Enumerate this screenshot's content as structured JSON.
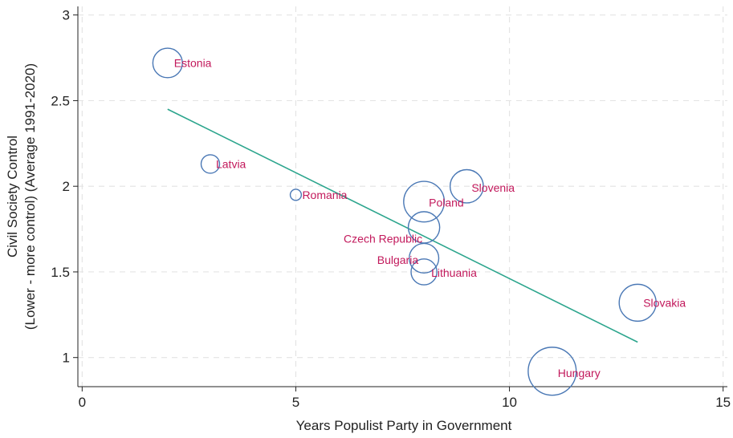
{
  "chart_data": {
    "type": "scatter",
    "title": "",
    "xlabel": "Years Populist Party in Government",
    "ylabel_line1": "Civil Society Control",
    "ylabel_line2": "(Lower - more control) (Average 1991-2020)",
    "xlim": [
      -0.1,
      15.1
    ],
    "ylim": [
      0.83,
      3.05
    ],
    "xticks": [
      0,
      5,
      10,
      15
    ],
    "xtick_labels": [
      "0",
      "5",
      "10",
      "15"
    ],
    "yticks": [
      1,
      1.5,
      2,
      2.5,
      3
    ],
    "ytick_labels": [
      "1",
      "1.5",
      "2",
      "2.5",
      "3"
    ],
    "grid": true,
    "points": [
      {
        "label": "Estonia",
        "x": 2,
        "y": 2.72,
        "size": 1.6
      },
      {
        "label": "Latvia",
        "x": 3,
        "y": 2.13,
        "size": 1.0
      },
      {
        "label": "Romania",
        "x": 5,
        "y": 1.95,
        "size": 0.6
      },
      {
        "label": "Poland",
        "x": 8,
        "y": 1.91,
        "size": 2.2
      },
      {
        "label": "Slovenia",
        "x": 9,
        "y": 2.0,
        "size": 1.8
      },
      {
        "label": "Czech Republic",
        "x": 8,
        "y": 1.76,
        "size": 1.7
      },
      {
        "label": "Bulgaria",
        "x": 8,
        "y": 1.58,
        "size": 1.6
      },
      {
        "label": "Lithuania",
        "x": 8,
        "y": 1.5,
        "size": 1.4
      },
      {
        "label": "Slovakia",
        "x": 13,
        "y": 1.32,
        "size": 2.0
      },
      {
        "label": "Hungary",
        "x": 11,
        "y": 0.92,
        "size": 2.6
      }
    ],
    "fit_line": {
      "x": [
        2,
        13
      ],
      "y": [
        2.45,
        1.09
      ]
    },
    "colors": {
      "marker": "#4a78b5",
      "label": "#c2185b",
      "fit": "#2ca58d",
      "grid": "#e4e4e4",
      "axis": "#222222"
    }
  }
}
